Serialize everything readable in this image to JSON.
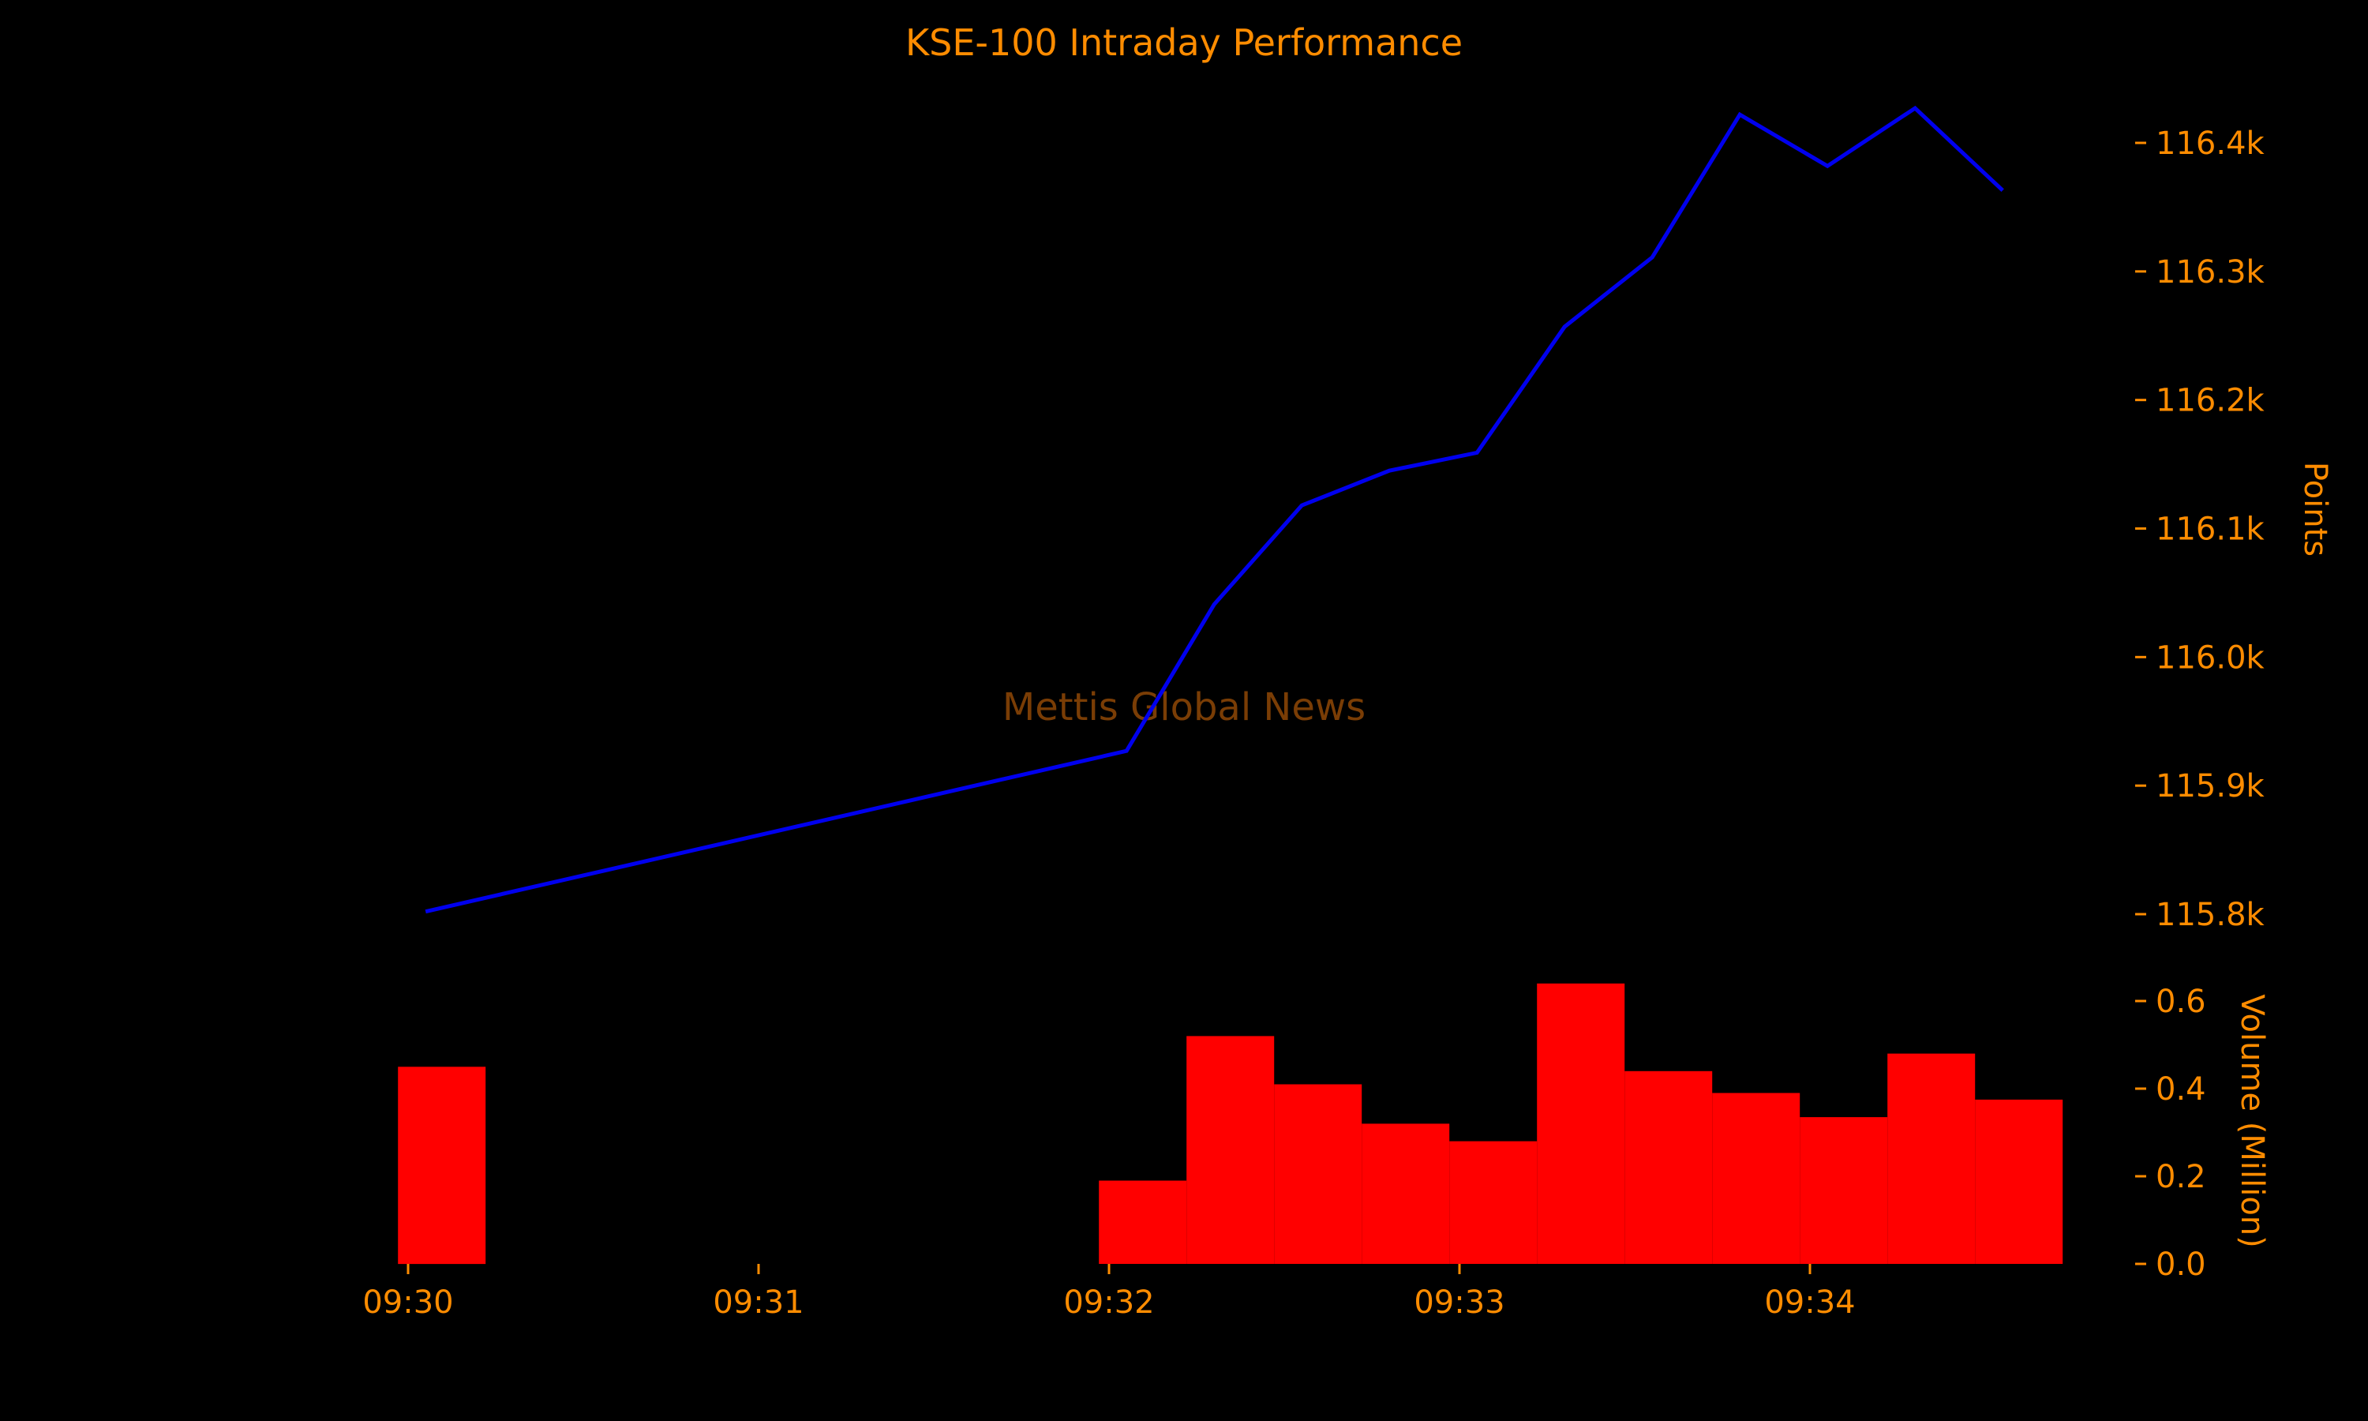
{
  "colors": {
    "background": "#000000",
    "text": "#ff8c00",
    "line": "#0000ee",
    "bars": "#ff0000",
    "watermark": "#7a3d05"
  },
  "chart_data": [
    {
      "type": "line",
      "title": "KSE-100 Intraday Performance",
      "ylabel": "Points",
      "y_axis_side": "right",
      "ylim": [
        115800,
        116400
      ],
      "yticks": [
        115800,
        115900,
        116000,
        116100,
        116200,
        116300,
        116400
      ],
      "ytick_labels": [
        "115.8k",
        "115.9k",
        "116.0k",
        "116.1k",
        "116.2k",
        "116.3k",
        "116.4k"
      ],
      "watermark": "Mettis Global News",
      "x": [
        "09:30:03",
        "09:32:03",
        "09:32:18",
        "09:32:33",
        "09:32:48",
        "09:33:03",
        "09:33:18",
        "09:33:33",
        "09:33:48",
        "09:34:03",
        "09:34:18",
        "09:34:33"
      ],
      "series": [
        {
          "values": [
            115802,
            115927,
            116041,
            116118,
            116145,
            116159,
            116257,
            116311,
            116422,
            116382,
            116427,
            116363
          ]
        }
      ]
    },
    {
      "type": "bar",
      "ylabel": "Volume (Million)",
      "y_axis_side": "right",
      "ylim": [
        0,
        0.65
      ],
      "yticks": [
        0,
        0.2,
        0.4,
        0.6
      ],
      "ytick_labels": [
        "0.0",
        "0.2",
        "0.4",
        "0.6"
      ],
      "xticks": [
        "09:30",
        "09:31",
        "09:32",
        "09:33",
        "09:34"
      ],
      "x": [
        "09:30:03",
        "09:32:03",
        "09:32:18",
        "09:32:33",
        "09:32:48",
        "09:33:03",
        "09:33:18",
        "09:33:33",
        "09:33:48",
        "09:34:03",
        "09:34:18",
        "09:34:33"
      ],
      "values": [
        0.45,
        0.19,
        0.52,
        0.41,
        0.32,
        0.28,
        0.64,
        0.44,
        0.39,
        0.335,
        0.48,
        0.375
      ]
    }
  ]
}
